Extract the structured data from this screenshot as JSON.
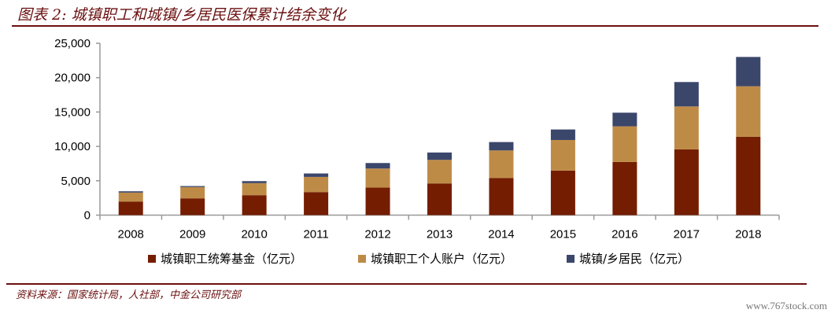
{
  "title": "图表 2: 城镇职工和城镇/乡居民医保累计结余变化",
  "source": "资料来源：国家统计局，人社部，中金公司研究部",
  "watermark": "www.767stock.com",
  "colors": {
    "employee_fund": "#741d00",
    "employee_account": "#be8b47",
    "resident": "#3b466b",
    "rule": "#6b0f0f"
  },
  "chart_data": {
    "type": "bar",
    "stacked": true,
    "title": "",
    "xlabel": "",
    "ylabel": "",
    "ylim": [
      0,
      25000
    ],
    "yticks": [
      0,
      5000,
      10000,
      15000,
      20000,
      25000
    ],
    "ytick_labels": [
      "0",
      "5,000",
      "10,000",
      "15,000",
      "20,000",
      "25,000"
    ],
    "categories": [
      "2008",
      "2009",
      "2010",
      "2011",
      "2012",
      "2013",
      "2014",
      "2015",
      "2016",
      "2017",
      "2018"
    ],
    "series": [
      {
        "name": "城镇职工统筹基金（亿元）",
        "values": [
          1980,
          2440,
          2900,
          3350,
          4000,
          4610,
          5410,
          6480,
          7730,
          9560,
          11390
        ]
      },
      {
        "name": "城镇职工个人账户（亿元）",
        "values": [
          1300,
          1640,
          1750,
          2210,
          2780,
          3430,
          4000,
          4450,
          5190,
          6250,
          7360
        ]
      },
      {
        "name": "城镇/乡居民（亿元）",
        "values": [
          190,
          150,
          300,
          500,
          800,
          1070,
          1220,
          1530,
          1980,
          3550,
          4260
        ]
      }
    ],
    "legend": "bottom",
    "grid": false
  }
}
